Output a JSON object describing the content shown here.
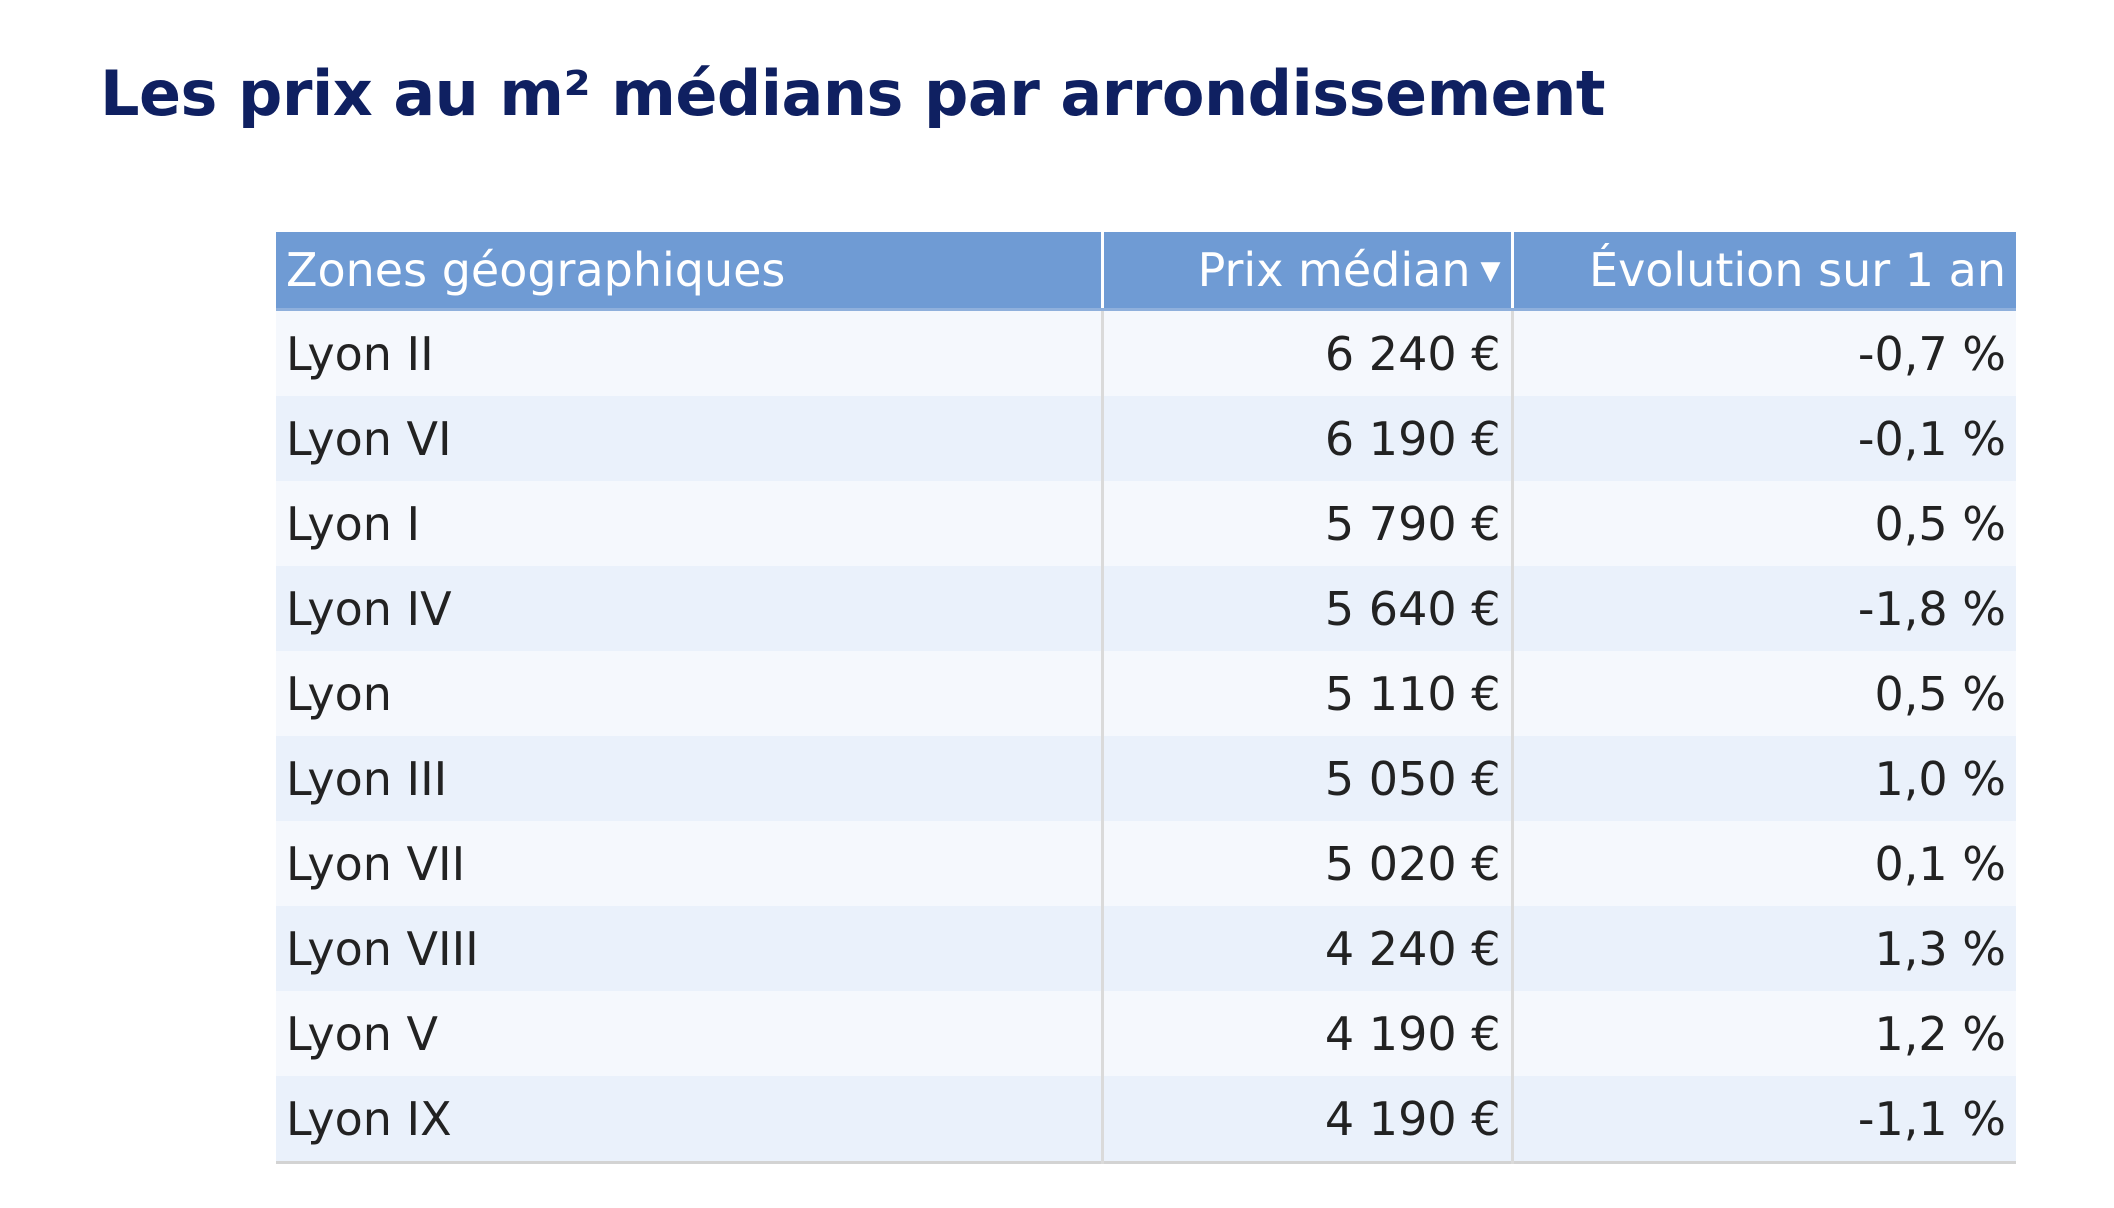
{
  "title": "Les prix au m² médians par arrondissement",
  "table": {
    "columns": [
      "Zones géographiques",
      "Prix médian",
      "Évolution sur 1 an"
    ],
    "sort_icon": "caret-down-icon",
    "rows": [
      {
        "zone": "Lyon II",
        "price": "6 240 €",
        "evolution": "-0,7 %"
      },
      {
        "zone": "Lyon VI",
        "price": "6 190 €",
        "evolution": "-0,1 %"
      },
      {
        "zone": "Lyon I",
        "price": "5 790 €",
        "evolution": "0,5 %"
      },
      {
        "zone": "Lyon IV",
        "price": "5 640 €",
        "evolution": "-1,8 %"
      },
      {
        "zone": "Lyon",
        "price": "5 110 €",
        "evolution": "0,5 %"
      },
      {
        "zone": "Lyon III",
        "price": "5 050 €",
        "evolution": "1,0 %"
      },
      {
        "zone": "Lyon VII",
        "price": "5 020 €",
        "evolution": "0,1 %"
      },
      {
        "zone": "Lyon VIII",
        "price": "4 240 €",
        "evolution": "1,3 %"
      },
      {
        "zone": "Lyon V",
        "price": "4 190 €",
        "evolution": "1,2 %"
      },
      {
        "zone": "Lyon IX",
        "price": "4 190 €",
        "evolution": "-1,1 %"
      }
    ]
  },
  "colors": {
    "title": "#0f2061",
    "header_bg": "#6f9bd4",
    "row_odd": "#f5f8fd",
    "row_even": "#eaf1fb"
  }
}
